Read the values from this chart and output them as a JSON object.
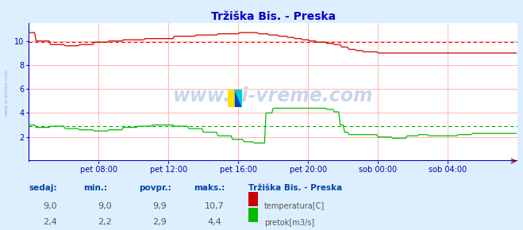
{
  "title": "Tržiška Bis. - Preska",
  "bg_color": "#ddeeff",
  "plot_bg_color": "#ffffff",
  "title_color": "#0000cc",
  "grid_v_color": "#ffaaaa",
  "grid_h_color": "#ffaaaa",
  "avg_temp_color": "#ff0000",
  "avg_flow_color": "#00aa00",
  "temp_color": "#cc0000",
  "flow_color": "#00bb00",
  "border_color": "#0000cc",
  "bottom_line_color": "#0000cc",
  "arrow_color": "#cc0000",
  "x_label_color": "#0000aa",
  "y_label_color": "#0000aa",
  "watermark_color": "#1144aa",
  "footer_label_color": "#0044aa",
  "footer_val_color": "#555555",
  "x_ticks_labels": [
    "pet 08:00",
    "pet 12:00",
    "pet 16:00",
    "pet 20:00",
    "sob 00:00",
    "sob 04:00"
  ],
  "x_ticks_pos": [
    48,
    96,
    144,
    192,
    240,
    288
  ],
  "y_ticks": [
    2,
    4,
    6,
    8,
    10
  ],
  "ylim": [
    0,
    11.5
  ],
  "xlim": [
    0,
    336
  ],
  "n_points": 336,
  "avg_temp": 9.9,
  "avg_flow": 2.9,
  "footer_labels": [
    "sedaj:",
    "min.:",
    "povpr.:",
    "maks.:"
  ],
  "footer_temp_vals": [
    "9,0",
    "9,0",
    "9,9",
    "10,7"
  ],
  "footer_flow_vals": [
    "2,4",
    "2,2",
    "2,9",
    "4,4"
  ],
  "legend_title": "Tržiška Bis. - Preska",
  "legend_temp": "temperatura[C]",
  "legend_flow": "pretok[m3/s]",
  "side_text": "www.si-vreme.com",
  "watermark_text": "www.si-vreme.com"
}
